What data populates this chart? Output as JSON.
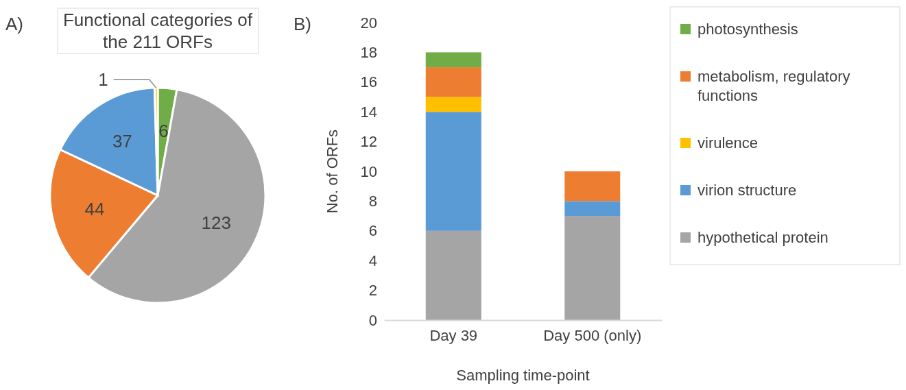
{
  "chart_data": [
    {
      "type": "pie",
      "title": "Functional categories of the 211 ORFs",
      "annotations": [
        "A)"
      ],
      "categories": [
        null,
        null,
        null,
        null,
        null
      ],
      "values": [
        6,
        123,
        44,
        37,
        1
      ],
      "colors": [
        "#70ad47",
        "#a5a5a5",
        "#ed7d31",
        "#5b9bd5",
        "#ffc000"
      ],
      "data_labels": true
    },
    {
      "type": "bar",
      "annotations": [
        "B)"
      ],
      "xlabel": "Sampling time-point",
      "ylabel": "No. of ORFs",
      "categories": [
        "Day 39",
        "Day 500 (only)"
      ],
      "stacked": true,
      "series": [
        {
          "name": "hypothetical protein",
          "color": "#a5a5a5",
          "values": [
            6,
            7
          ]
        },
        {
          "name": "virion structure",
          "color": "#5b9bd5",
          "values": [
            8,
            1
          ]
        },
        {
          "name": "virulence",
          "color": "#ffc000",
          "values": [
            1,
            0
          ]
        },
        {
          "name": "metabolism, regulatory functions",
          "color": "#ed7d31",
          "values": [
            2,
            2
          ]
        },
        {
          "name": "photosynthesis",
          "color": "#70ad47",
          "values": [
            1,
            0
          ]
        }
      ],
      "ylim": [
        0,
        20
      ],
      "yticks": [
        0,
        2,
        4,
        6,
        8,
        10,
        12,
        14,
        16,
        18,
        20
      ],
      "legend": "right"
    }
  ]
}
